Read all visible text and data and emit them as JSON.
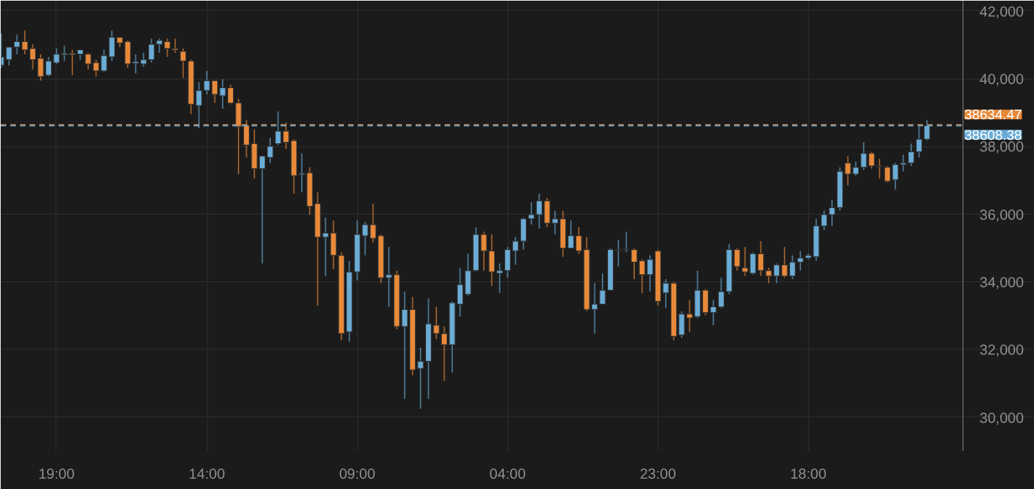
{
  "chart_data": {
    "type": "candlestick",
    "categories": [
      null,
      null,
      null,
      null,
      null,
      null,
      null,
      "19:00",
      null,
      null,
      null,
      null,
      null,
      null,
      null,
      null,
      null,
      null,
      null,
      null,
      null,
      null,
      null,
      null,
      null,
      null,
      "14:00",
      null,
      null,
      null,
      null,
      null,
      null,
      null,
      null,
      null,
      null,
      null,
      null,
      null,
      null,
      null,
      null,
      null,
      null,
      "09:00",
      null,
      null,
      null,
      null,
      null,
      null,
      null,
      null,
      null,
      null,
      null,
      null,
      null,
      null,
      null,
      null,
      null,
      null,
      "04:00",
      null,
      null,
      null,
      null,
      null,
      null,
      null,
      null,
      null,
      null,
      null,
      null,
      null,
      null,
      null,
      null,
      null,
      null,
      "23:00",
      null,
      null,
      null,
      null,
      null,
      null,
      null,
      null,
      null,
      null,
      null,
      null,
      null,
      null,
      null,
      null,
      null,
      null,
      "18:00",
      null,
      null,
      null,
      null,
      null,
      null,
      null,
      null,
      null,
      null,
      null,
      null,
      null,
      null,
      null
    ],
    "ylim": [
      29000,
      42300
    ],
    "yticks": [
      {
        "value": 30000,
        "label": "30,000"
      },
      {
        "value": 32000,
        "label": "32,000"
      },
      {
        "value": 34000,
        "label": "34,000"
      },
      {
        "value": 36000,
        "label": "36,000"
      },
      {
        "value": 38000,
        "label": "38,000"
      },
      {
        "value": 40000,
        "label": "40,000"
      },
      {
        "value": 42000,
        "label": "42,000"
      }
    ],
    "grid": true,
    "ohlc": [
      [
        40390,
        41340,
        40310,
        40640
      ],
      [
        40560,
        40930,
        40390,
        40930
      ],
      [
        40930,
        41300,
        40720,
        41090
      ],
      [
        41090,
        41420,
        40720,
        40850
      ],
      [
        40890,
        41010,
        40270,
        40560
      ],
      [
        40600,
        40720,
        39940,
        40060
      ],
      [
        40100,
        40640,
        40060,
        40520
      ],
      [
        40470,
        40890,
        40430,
        40720
      ],
      [
        40700,
        40970,
        40520,
        40740
      ],
      [
        40740,
        40850,
        40100,
        40700
      ],
      [
        40720,
        40850,
        40560,
        40850
      ],
      [
        40720,
        40760,
        40270,
        40430
      ],
      [
        40470,
        40560,
        40060,
        40230
      ],
      [
        40230,
        40850,
        40190,
        40680
      ],
      [
        40640,
        41420,
        40520,
        41220
      ],
      [
        41220,
        41220,
        40930,
        41050
      ],
      [
        41090,
        41130,
        40310,
        40430
      ],
      [
        40450,
        40720,
        40150,
        40500
      ],
      [
        40430,
        40760,
        40350,
        40560
      ],
      [
        40560,
        41180,
        40470,
        41010
      ],
      [
        41010,
        41180,
        40760,
        41130
      ],
      [
        41090,
        41180,
        40640,
        40890
      ],
      [
        40890,
        41180,
        40760,
        40850
      ],
      [
        40800,
        40890,
        40020,
        40520
      ],
      [
        40520,
        40560,
        38950,
        39240
      ],
      [
        39200,
        39900,
        38540,
        39650
      ],
      [
        39650,
        40230,
        39530,
        39940
      ],
      [
        39940,
        39940,
        39280,
        39530
      ],
      [
        39490,
        39980,
        39110,
        39730
      ],
      [
        39730,
        39820,
        39240,
        39280
      ],
      [
        39280,
        39400,
        37180,
        38580
      ],
      [
        38620,
        38780,
        37670,
        38040
      ],
      [
        38080,
        38500,
        37050,
        37340
      ],
      [
        37340,
        37710,
        34540,
        37710
      ],
      [
        37670,
        38250,
        37510,
        38000
      ],
      [
        38080,
        39030,
        38040,
        38450
      ],
      [
        38450,
        38700,
        37920,
        38120
      ],
      [
        38170,
        38210,
        36600,
        37130
      ],
      [
        37160,
        37790,
        36640,
        37200
      ],
      [
        37220,
        37380,
        35980,
        36230
      ],
      [
        36310,
        36640,
        33300,
        35320
      ],
      [
        35320,
        35900,
        34170,
        35440
      ],
      [
        35440,
        35810,
        34370,
        34780
      ],
      [
        34780,
        34870,
        32270,
        32470
      ],
      [
        32520,
        34620,
        32230,
        34290
      ],
      [
        34290,
        35810,
        34040,
        35400
      ],
      [
        35360,
        35770,
        34780,
        35690
      ],
      [
        35690,
        36310,
        35160,
        35280
      ],
      [
        35360,
        35400,
        33960,
        34120
      ],
      [
        34120,
        35030,
        33260,
        34210
      ],
      [
        34210,
        34330,
        32600,
        32680
      ],
      [
        32680,
        33710,
        30540,
        33180
      ],
      [
        33180,
        33550,
        31240,
        31400
      ],
      [
        31440,
        32060,
        30250,
        31650
      ],
      [
        31650,
        33510,
        30540,
        32760
      ],
      [
        32720,
        33260,
        32310,
        32470
      ],
      [
        32470,
        32680,
        31070,
        32140
      ],
      [
        32140,
        33420,
        31320,
        33380
      ],
      [
        33340,
        34410,
        32970,
        33920
      ],
      [
        33630,
        34830,
        33590,
        34330
      ],
      [
        34330,
        35610,
        34310,
        35400
      ],
      [
        35400,
        35480,
        34330,
        34910
      ],
      [
        34910,
        35400,
        33880,
        34290
      ],
      [
        34250,
        34540,
        33670,
        34330
      ],
      [
        34330,
        35030,
        34120,
        34950
      ],
      [
        34910,
        35320,
        34500,
        35200
      ],
      [
        35200,
        35900,
        34950,
        35860
      ],
      [
        35860,
        36350,
        35690,
        35980
      ],
      [
        35980,
        36600,
        35570,
        36390
      ],
      [
        36390,
        36470,
        35610,
        35730
      ],
      [
        35730,
        36100,
        35400,
        35860
      ],
      [
        35860,
        36100,
        34740,
        34990
      ],
      [
        34990,
        35810,
        34980,
        35360
      ],
      [
        35360,
        35610,
        34830,
        34910
      ],
      [
        34950,
        35320,
        33130,
        33180
      ],
      [
        33180,
        33960,
        32470,
        33340
      ],
      [
        33340,
        34250,
        33330,
        33750
      ],
      [
        33750,
        34990,
        33740,
        34950
      ],
      [
        34930,
        35240,
        34450,
        34950
      ],
      [
        34940,
        35480,
        34870,
        34960
      ],
      [
        34950,
        34990,
        34080,
        34580
      ],
      [
        34620,
        34660,
        33670,
        34210
      ],
      [
        34210,
        34780,
        33710,
        34660
      ],
      [
        34910,
        34950,
        33300,
        33420
      ],
      [
        33670,
        34080,
        33220,
        33960
      ],
      [
        33960,
        34000,
        32270,
        32390
      ],
      [
        32430,
        33130,
        32350,
        33050
      ],
      [
        33050,
        33460,
        32520,
        32930
      ],
      [
        32970,
        34330,
        32930,
        33750
      ],
      [
        33750,
        33790,
        33010,
        33090
      ],
      [
        33090,
        33460,
        32720,
        33260
      ],
      [
        33260,
        34120,
        33220,
        33710
      ],
      [
        33710,
        35110,
        33630,
        34950
      ],
      [
        34950,
        34990,
        34330,
        34450
      ],
      [
        34410,
        35030,
        34170,
        34290
      ],
      [
        34250,
        34870,
        34210,
        34830
      ],
      [
        34830,
        35200,
        34170,
        34330
      ],
      [
        34330,
        34410,
        33960,
        34170
      ],
      [
        34170,
        34540,
        33960,
        34500
      ],
      [
        34500,
        35030,
        34120,
        34170
      ],
      [
        34170,
        34780,
        34080,
        34580
      ],
      [
        34580,
        34910,
        34330,
        34700
      ],
      [
        34700,
        34830,
        34660,
        34780
      ],
      [
        34740,
        35860,
        34620,
        35650
      ],
      [
        35650,
        36100,
        35530,
        35980
      ],
      [
        35980,
        36430,
        35650,
        36190
      ],
      [
        36190,
        37380,
        36100,
        37260
      ],
      [
        37510,
        37710,
        36850,
        37180
      ],
      [
        37180,
        37550,
        37130,
        37380
      ],
      [
        37380,
        38120,
        37300,
        37790
      ],
      [
        37790,
        37840,
        37340,
        37420
      ],
      [
        37420,
        37630,
        37050,
        37400
      ],
      [
        37380,
        37420,
        36930,
        36970
      ],
      [
        37010,
        37510,
        36720,
        37460
      ],
      [
        37460,
        37750,
        37260,
        37510
      ],
      [
        37510,
        38080,
        37420,
        37840
      ],
      [
        37840,
        38580,
        37670,
        38210
      ],
      [
        38210,
        38780,
        38170,
        38610
      ]
    ],
    "colors": [
      "#6aacd6",
      "#6aacd6",
      "#6aacd6",
      "#e8893a",
      "#e8893a",
      "#e8893a",
      "#6aacd6",
      "#6aacd6",
      "#6aacd6",
      "#e8893a",
      "#6aacd6",
      "#e8893a",
      "#e8893a",
      "#6aacd6",
      "#6aacd6",
      "#e8893a",
      "#e8893a",
      "#6aacd6",
      "#6aacd6",
      "#6aacd6",
      "#6aacd6",
      "#e8893a",
      "#e8893a",
      "#e8893a",
      "#e8893a",
      "#6aacd6",
      "#6aacd6",
      "#e8893a",
      "#6aacd6",
      "#e8893a",
      "#e8893a",
      "#e8893a",
      "#e8893a",
      "#6aacd6",
      "#6aacd6",
      "#6aacd6",
      "#e8893a",
      "#e8893a",
      "#6aacd6",
      "#e8893a",
      "#e8893a",
      "#6aacd6",
      "#e8893a",
      "#e8893a",
      "#6aacd6",
      "#6aacd6",
      "#6aacd6",
      "#e8893a",
      "#e8893a",
      "#6aacd6",
      "#e8893a",
      "#6aacd6",
      "#e8893a",
      "#6aacd6",
      "#6aacd6",
      "#e8893a",
      "#e8893a",
      "#6aacd6",
      "#6aacd6",
      "#6aacd6",
      "#6aacd6",
      "#e8893a",
      "#e8893a",
      "#6aacd6",
      "#6aacd6",
      "#6aacd6",
      "#6aacd6",
      "#6aacd6",
      "#6aacd6",
      "#e8893a",
      "#6aacd6",
      "#e8893a",
      "#6aacd6",
      "#e8893a",
      "#e8893a",
      "#6aacd6",
      "#6aacd6",
      "#6aacd6",
      "#6aacd6",
      "#6aacd6",
      "#e8893a",
      "#e8893a",
      "#6aacd6",
      "#e8893a",
      "#6aacd6",
      "#e8893a",
      "#6aacd6",
      "#e8893a",
      "#6aacd6",
      "#e8893a",
      "#6aacd6",
      "#6aacd6",
      "#6aacd6",
      "#e8893a",
      "#e8893a",
      "#6aacd6",
      "#e8893a",
      "#e8893a",
      "#6aacd6",
      "#e8893a",
      "#6aacd6",
      "#6aacd6",
      "#6aacd6",
      "#6aacd6",
      "#6aacd6",
      "#6aacd6",
      "#6aacd6",
      "#e8893a",
      "#6aacd6",
      "#6aacd6",
      "#e8893a",
      "#e8893a",
      "#e8893a",
      "#6aacd6",
      "#6aacd6",
      "#6aacd6",
      "#6aacd6",
      "#6aacd6"
    ],
    "ref_lines": [
      {
        "axis": "y",
        "value": 38634.47,
        "label": "38634.47",
        "color": "#e8893a",
        "line_style": "dashed"
      },
      {
        "axis": "y",
        "value": 38608.38,
        "label": "38608.38",
        "color": "#6aacd6",
        "line_style": "dashed"
      }
    ]
  }
}
